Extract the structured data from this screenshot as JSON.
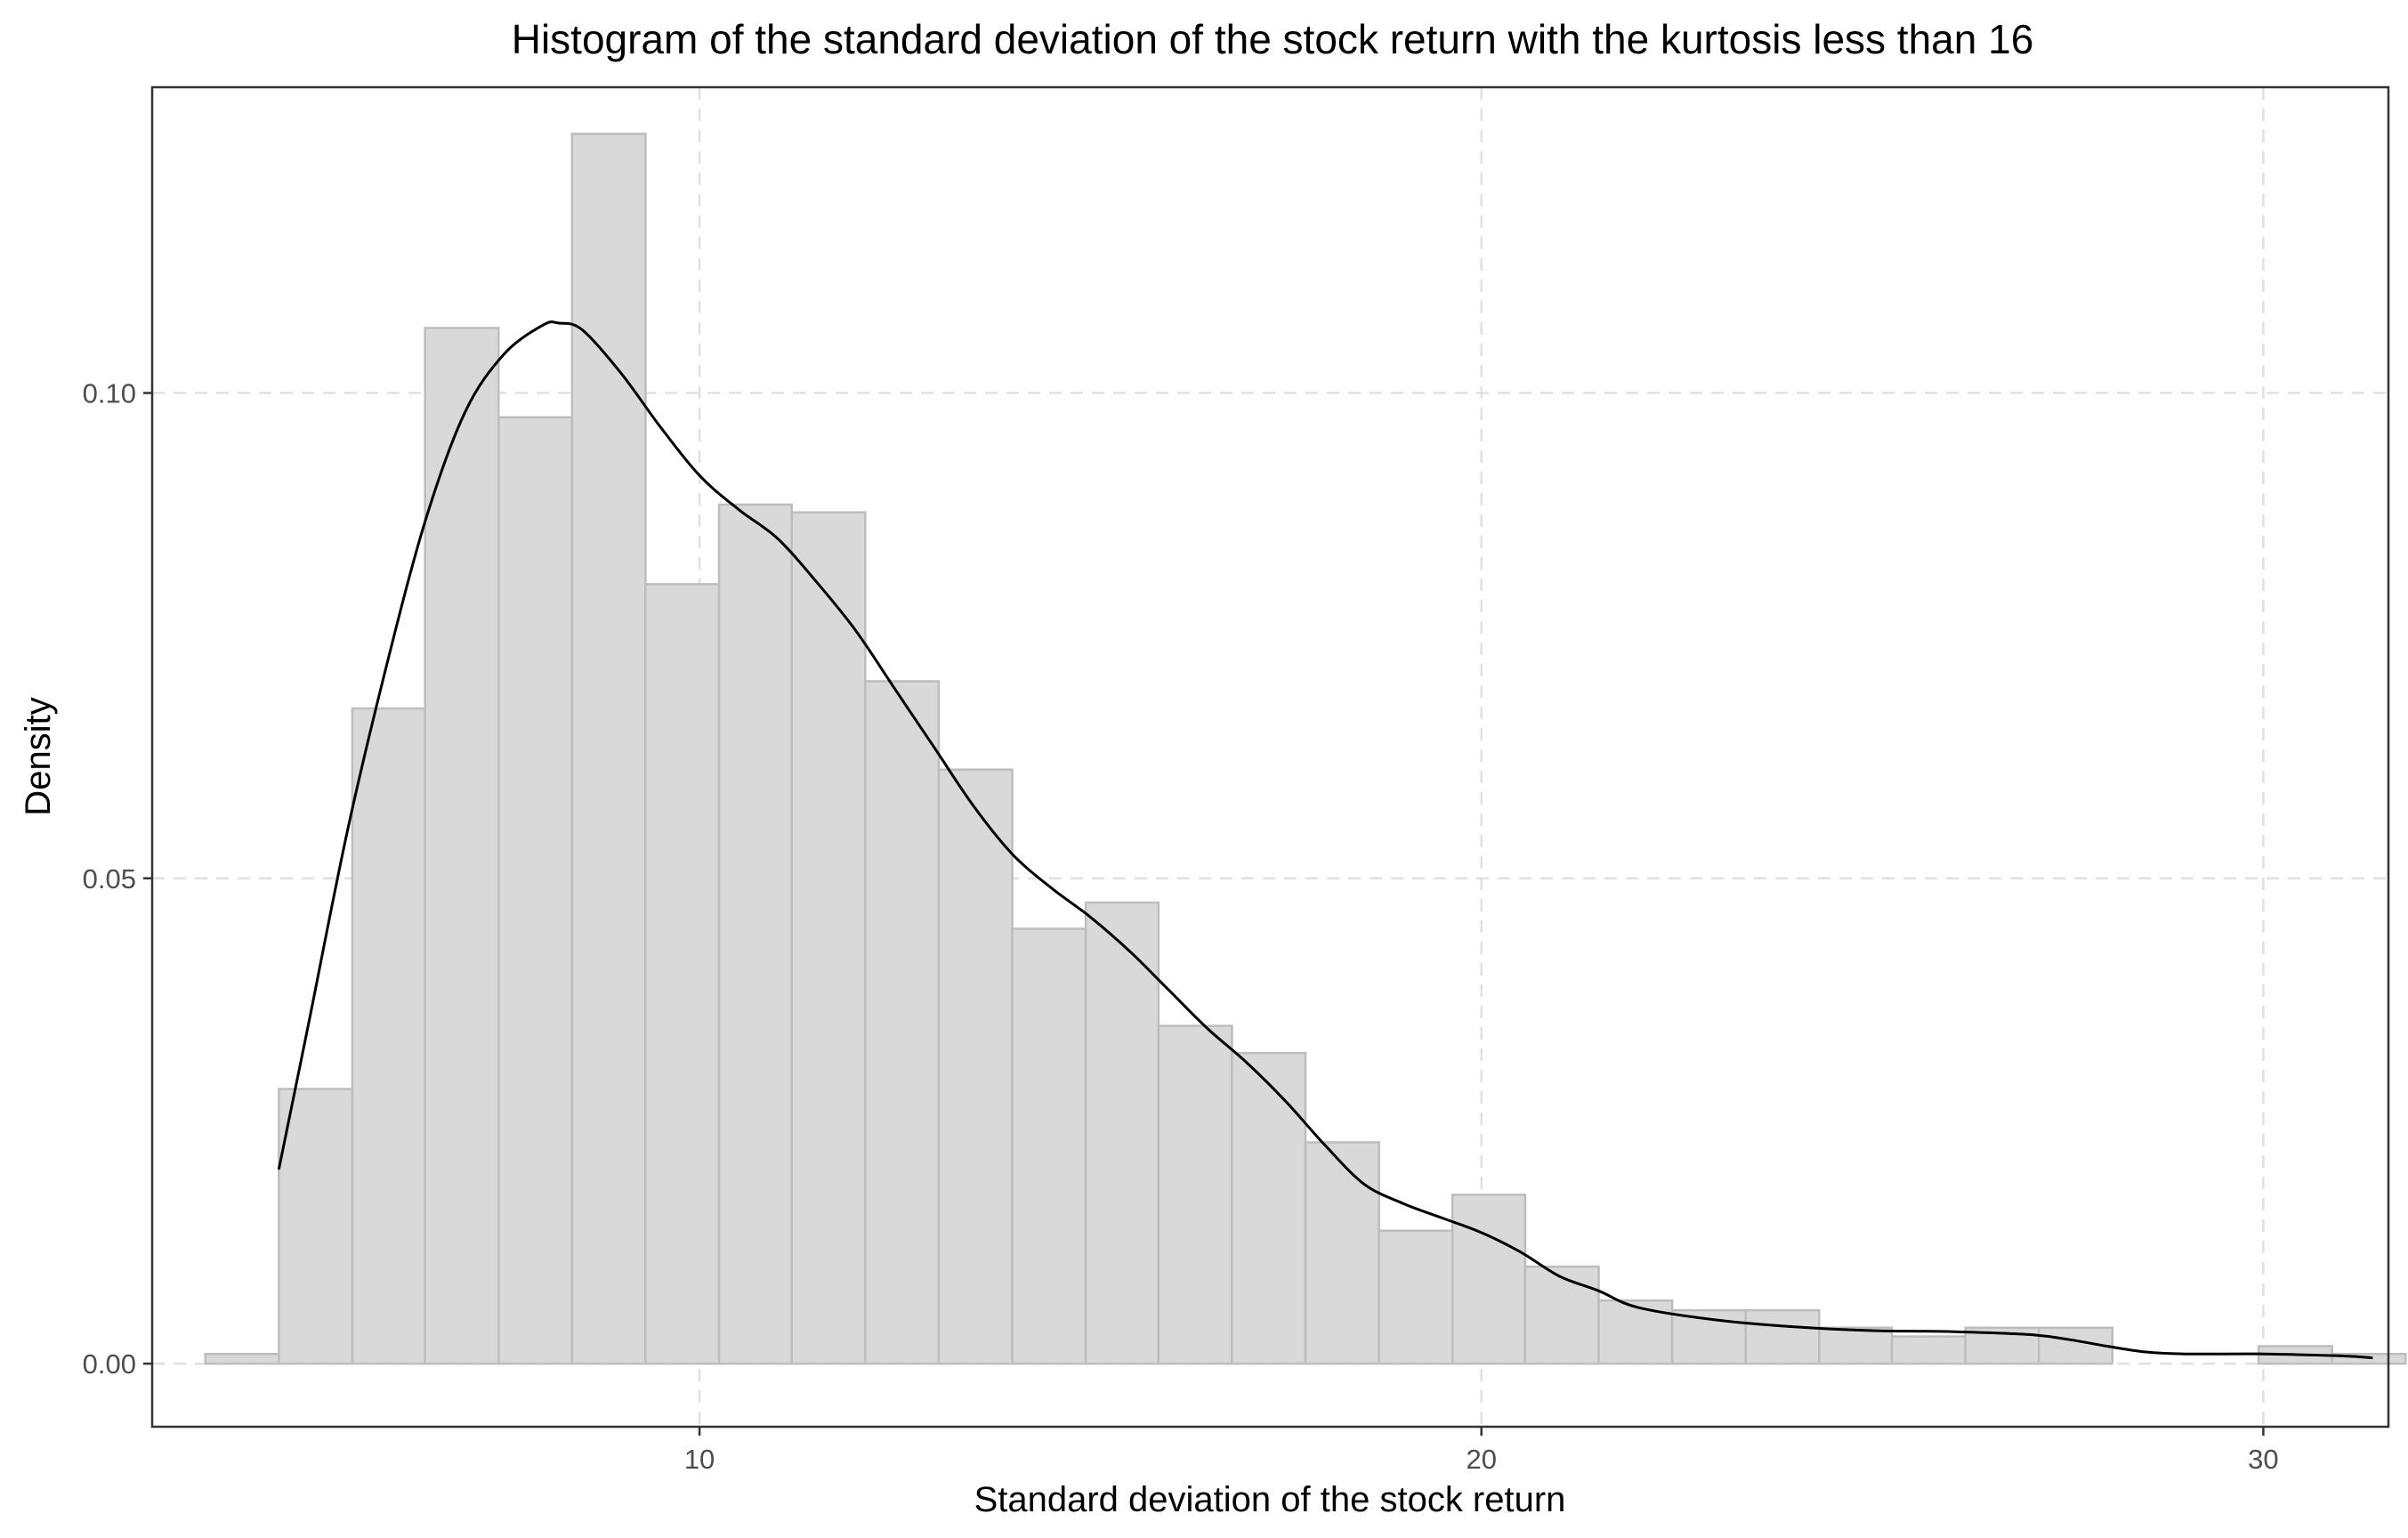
{
  "chart_data": {
    "type": "bar",
    "title": "Histogram of the standard deviation of the stock return with the kurtosis less than 16",
    "xlabel": "Standard deviation of the stock return",
    "ylabel": "Density",
    "xlim": [
      3.0,
      31.6
    ],
    "ylim": [
      -0.0065,
      0.1315
    ],
    "x_ticks": [
      10,
      20,
      30
    ],
    "y_ticks": [
      0.0,
      0.05,
      0.1
    ],
    "x_tick_labels": [
      "10",
      "20",
      "30"
    ],
    "y_tick_labels": [
      "0.00",
      "0.05",
      "0.10"
    ],
    "grid": true,
    "grid_style": "dashed",
    "colors": {
      "bar_fill": "#d9d9d9",
      "bar_stroke": "#bdbdbd",
      "grid": "#e0e0e0",
      "density_line": "#000000",
      "panel_border": "#333333"
    },
    "bins": [
      {
        "x0": 3.68,
        "x1": 4.62,
        "density": 0.001
      },
      {
        "x0": 4.62,
        "x1": 5.56,
        "density": 0.0283
      },
      {
        "x0": 5.56,
        "x1": 6.49,
        "density": 0.0675
      },
      {
        "x0": 6.49,
        "x1": 7.43,
        "density": 0.1067
      },
      {
        "x0": 7.43,
        "x1": 8.37,
        "density": 0.0975
      },
      {
        "x0": 8.37,
        "x1": 9.31,
        "density": 0.1267
      },
      {
        "x0": 9.31,
        "x1": 10.25,
        "density": 0.0803
      },
      {
        "x0": 10.25,
        "x1": 11.18,
        "density": 0.0885
      },
      {
        "x0": 11.18,
        "x1": 12.12,
        "density": 0.0877
      },
      {
        "x0": 12.12,
        "x1": 13.06,
        "density": 0.0703
      },
      {
        "x0": 13.06,
        "x1": 14.0,
        "density": 0.0612
      },
      {
        "x0": 14.0,
        "x1": 14.94,
        "density": 0.0448
      },
      {
        "x0": 14.94,
        "x1": 15.87,
        "density": 0.0475
      },
      {
        "x0": 15.87,
        "x1": 16.81,
        "density": 0.0348
      },
      {
        "x0": 16.81,
        "x1": 17.75,
        "density": 0.032
      },
      {
        "x0": 17.75,
        "x1": 18.69,
        "density": 0.0228
      },
      {
        "x0": 18.69,
        "x1": 19.63,
        "density": 0.0137
      },
      {
        "x0": 19.63,
        "x1": 20.56,
        "density": 0.0174
      },
      {
        "x0": 20.56,
        "x1": 21.5,
        "density": 0.01
      },
      {
        "x0": 21.5,
        "x1": 22.44,
        "density": 0.0065
      },
      {
        "x0": 22.44,
        "x1": 23.38,
        "density": 0.0055
      },
      {
        "x0": 23.38,
        "x1": 24.32,
        "density": 0.0055
      },
      {
        "x0": 24.32,
        "x1": 25.25,
        "density": 0.0037
      },
      {
        "x0": 25.25,
        "x1": 26.19,
        "density": 0.0028
      },
      {
        "x0": 26.19,
        "x1": 27.13,
        "density": 0.0037
      },
      {
        "x0": 27.13,
        "x1": 28.07,
        "density": 0.0037
      },
      {
        "x0": 28.07,
        "x1": 29.01,
        "density": 0.0
      },
      {
        "x0": 29.01,
        "x1": 29.94,
        "density": 0.0
      },
      {
        "x0": 29.94,
        "x1": 30.88,
        "density": 0.0018
      },
      {
        "x0": 30.88,
        "x1": 31.82,
        "density": 0.001
      }
    ],
    "density_curve": {
      "x": [
        4.62,
        5.0,
        5.5,
        6.0,
        6.5,
        7.0,
        7.5,
        8.0,
        8.2,
        8.5,
        9.0,
        9.5,
        10.0,
        10.5,
        11.0,
        11.5,
        12.0,
        12.5,
        13.0,
        13.5,
        14.0,
        14.5,
        15.0,
        15.5,
        16.0,
        16.5,
        17.0,
        17.5,
        18.0,
        18.5,
        19.0,
        19.5,
        20.0,
        20.5,
        21.0,
        21.5,
        22.0,
        23.0,
        24.0,
        25.0,
        26.0,
        27.0,
        27.5,
        28.0,
        28.5,
        29.0,
        30.0,
        31.0,
        31.4
      ],
      "y": [
        0.02,
        0.035,
        0.055,
        0.072,
        0.087,
        0.098,
        0.104,
        0.107,
        0.1072,
        0.1065,
        0.102,
        0.0965,
        0.0915,
        0.088,
        0.085,
        0.0805,
        0.0755,
        0.0695,
        0.0635,
        0.0575,
        0.0525,
        0.049,
        0.046,
        0.0425,
        0.0385,
        0.0345,
        0.031,
        0.027,
        0.0225,
        0.0185,
        0.0165,
        0.015,
        0.0135,
        0.0115,
        0.009,
        0.0075,
        0.0058,
        0.0045,
        0.0038,
        0.0034,
        0.0033,
        0.003,
        0.0025,
        0.0018,
        0.0012,
        0.001,
        0.001,
        0.0008,
        0.0006
      ]
    }
  }
}
